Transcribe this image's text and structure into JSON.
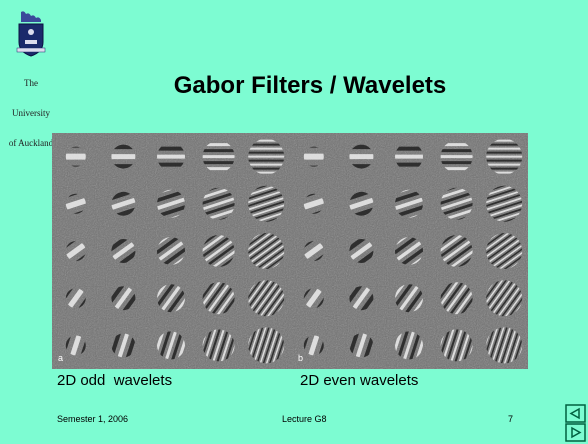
{
  "header": {
    "logo": {
      "lines": [
        "The",
        "University",
        "of Auckland"
      ]
    },
    "title": "Gabor Filters / Wavelets"
  },
  "figure": {
    "panel_labels": [
      "a",
      "b"
    ],
    "captions": [
      "2D odd  wavelets",
      "2D even wavelets"
    ]
  },
  "footer": {
    "left": "Semester 1, 2006",
    "center": "Lecture G8",
    "page": "7"
  }
}
